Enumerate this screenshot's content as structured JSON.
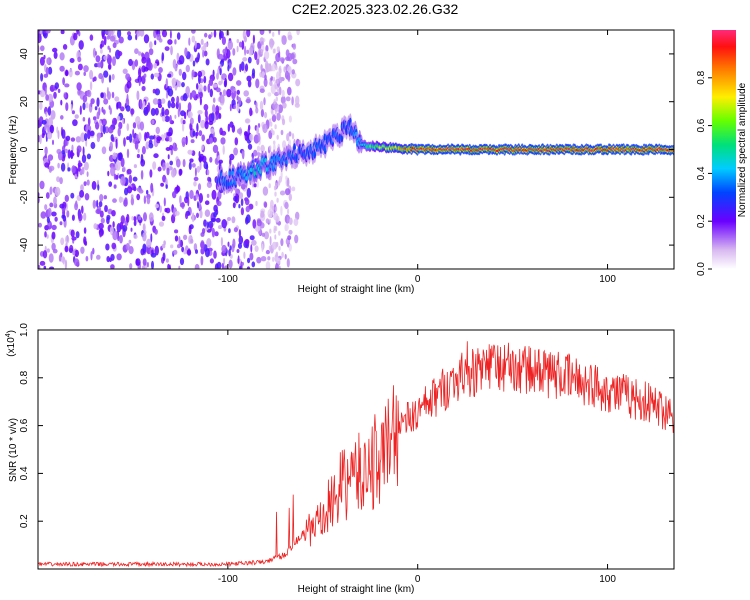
{
  "title": "C2E2.2025.323.02.26.G32",
  "chart_data": [
    {
      "type": "heatmap",
      "xlabel": "Height of straight line (km)",
      "ylabel": "Frequency (Hz)",
      "xlim": [
        -200,
        135
      ],
      "ylim": [
        -50,
        50
      ],
      "xticks": [
        -100,
        0,
        100
      ],
      "xtick_labels": [
        "-100",
        "0",
        "100"
      ],
      "yticks": [
        -40,
        -20,
        0,
        20,
        40
      ],
      "ytick_labels": [
        "-40",
        "-20",
        "0",
        "20",
        "40"
      ],
      "colorbar": {
        "label": "Normalized spectral amplitude",
        "range": [
          0,
          1
        ],
        "ticks": [
          0.0,
          0.2,
          0.4,
          0.6,
          0.8
        ],
        "tick_labels": [
          "0.0",
          "0.2",
          "0.4",
          "0.6",
          "0.8"
        ]
      },
      "ridge": {
        "x": [
          -105,
          -95,
          -85,
          -75,
          -65,
          -55,
          -45,
          -35,
          -30,
          -20,
          0,
          50,
          100,
          135
        ],
        "freq": [
          -13,
          -12,
          -8,
          -5,
          -2,
          0,
          4,
          10,
          2,
          1,
          0,
          0,
          0,
          0
        ],
        "amplitude": [
          0.35,
          0.4,
          0.5,
          0.4,
          0.35,
          0.35,
          0.35,
          0.35,
          0.45,
          0.7,
          1.0,
          1.0,
          1.0,
          1.0
        ]
      },
      "noise_region": {
        "x": [
          -200,
          -75
        ],
        "amplitude": [
          0.1,
          0.25
        ]
      }
    },
    {
      "type": "line",
      "xlabel": "Height of straight line (km)",
      "ylabel": "SNR (10 * v/v)",
      "yscale_label": "(x10",
      "yscale_exponent": "4",
      "xlim": [
        -200,
        135
      ],
      "ylim": [
        0,
        1.0
      ],
      "xticks": [
        -100,
        0,
        100
      ],
      "xtick_labels": [
        "-100",
        "0",
        "100"
      ],
      "yticks": [
        0.2,
        0.4,
        0.6,
        0.8,
        1.0
      ],
      "ytick_labels": [
        "0.2",
        "0.4",
        "0.6",
        "0.8",
        "1.0"
      ],
      "series": [
        {
          "name": "SNR",
          "color": "#ee2222",
          "x": [
            -200,
            -150,
            -100,
            -80,
            -70,
            -60,
            -50,
            -40,
            -30,
            -20,
            -10,
            0,
            20,
            40,
            60,
            80,
            100,
            120,
            135
          ],
          "y": [
            0.02,
            0.02,
            0.02,
            0.03,
            0.06,
            0.15,
            0.2,
            0.35,
            0.4,
            0.45,
            0.6,
            0.65,
            0.8,
            0.85,
            0.83,
            0.8,
            0.75,
            0.7,
            0.65
          ]
        }
      ]
    }
  ]
}
